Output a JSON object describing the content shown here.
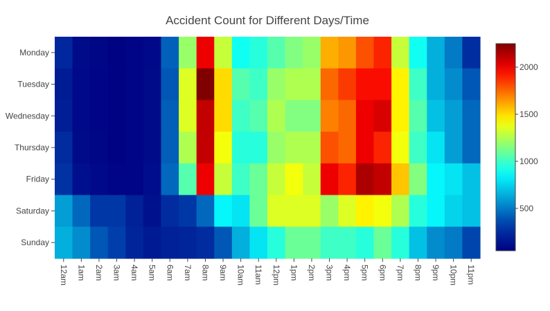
{
  "chart_data": {
    "type": "heatmap",
    "title": "Accident Count for Different Days/Time",
    "xlabel": "",
    "ylabel": "",
    "x_categories": [
      "12am",
      "1am",
      "2am",
      "3am",
      "4am",
      "5am",
      "6am",
      "7am",
      "8am",
      "9am",
      "10am",
      "11am",
      "12pm",
      "1pm",
      "2pm",
      "3pm",
      "4pm",
      "5pm",
      "6pm",
      "7pm",
      "8pm",
      "9pm",
      "10pm",
      "11pm"
    ],
    "y_categories": [
      "Monday",
      "Tuesday",
      "Wednesday",
      "Thursday",
      "Friday",
      "Saturday",
      "Sunday"
    ],
    "values": [
      [
        230,
        100,
        80,
        60,
        70,
        90,
        430,
        1200,
        2000,
        1300,
        900,
        950,
        1050,
        1150,
        1200,
        1600,
        1650,
        1800,
        1900,
        1300,
        900,
        650,
        500,
        260
      ],
      [
        180,
        90,
        70,
        60,
        70,
        100,
        400,
        1350,
        2250,
        1500,
        1050,
        1000,
        1200,
        1250,
        1250,
        1750,
        1850,
        1950,
        1950,
        1450,
        1000,
        650,
        550,
        400
      ],
      [
        190,
        90,
        70,
        60,
        70,
        100,
        420,
        1350,
        2100,
        1500,
        1000,
        1050,
        1250,
        1150,
        1150,
        1700,
        1750,
        2000,
        2050,
        1450,
        1050,
        700,
        600,
        450
      ],
      [
        250,
        100,
        80,
        60,
        70,
        100,
        420,
        1250,
        2100,
        1400,
        950,
        950,
        1200,
        1250,
        1250,
        1800,
        1750,
        2000,
        1900,
        1400,
        1000,
        800,
        600,
        450
      ],
      [
        280,
        120,
        90,
        70,
        70,
        110,
        450,
        1050,
        2000,
        1300,
        1000,
        1100,
        1300,
        1400,
        1300,
        2000,
        1900,
        2150,
        2100,
        1550,
        1150,
        850,
        800,
        700
      ],
      [
        600,
        450,
        300,
        300,
        200,
        130,
        250,
        300,
        450,
        850,
        800,
        1100,
        1350,
        1350,
        1350,
        1200,
        1350,
        1450,
        1400,
        1250,
        950,
        850,
        750,
        700
      ],
      [
        650,
        550,
        400,
        330,
        220,
        170,
        200,
        220,
        250,
        400,
        650,
        800,
        950,
        1100,
        1100,
        1000,
        1000,
        950,
        1100,
        950,
        700,
        550,
        500,
        350
      ]
    ],
    "zlim": [
      50,
      2250
    ],
    "colorscale": "jet",
    "colorbar_ticks": [
      500,
      1000,
      1500,
      2000
    ]
  }
}
